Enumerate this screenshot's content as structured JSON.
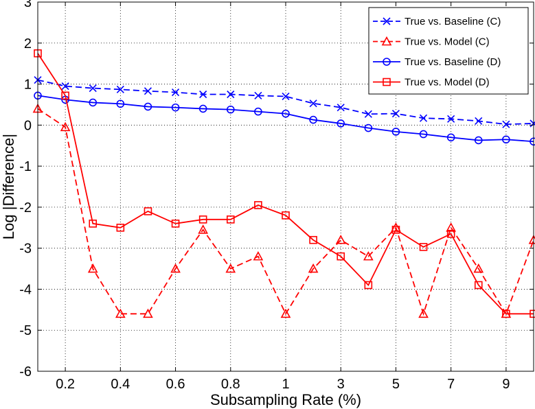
{
  "chart_data": {
    "type": "line",
    "title": "",
    "xlabel": "Subsampling Rate (%)",
    "ylabel": "Log |Difference|",
    "ylim": [
      -6,
      3
    ],
    "y_ticks": [
      -6,
      -5,
      -4,
      -3,
      -2,
      -1,
      0,
      1,
      2,
      3
    ],
    "x_categories": [
      "0.1",
      "0.2",
      "0.3",
      "0.4",
      "0.5",
      "0.6",
      "0.7",
      "0.8",
      "0.9",
      "1",
      "2",
      "3",
      "4",
      "5",
      "6",
      "7",
      "8",
      "9",
      "10"
    ],
    "x_tick_labels": [
      "0.2",
      "0.4",
      "0.6",
      "0.8",
      "1",
      "3",
      "5",
      "7",
      "9"
    ],
    "grid": true,
    "legend_position": "top-right",
    "series": [
      {
        "name": "True vs. Baseline (C)",
        "color": "#0000ff",
        "line_style": "dashed",
        "marker": "x",
        "values": [
          1.1,
          0.95,
          0.9,
          0.87,
          0.83,
          0.8,
          0.75,
          0.75,
          0.72,
          0.7,
          0.53,
          0.43,
          0.27,
          0.28,
          0.17,
          0.15,
          0.1,
          0.02,
          0.04
        ]
      },
      {
        "name": "True vs. Model (C)",
        "color": "#ff0000",
        "line_style": "dashed",
        "marker": "triangle",
        "values": [
          0.4,
          -0.05,
          -3.5,
          -4.6,
          -4.6,
          -3.5,
          -2.55,
          -3.5,
          -3.2,
          -4.6,
          -3.5,
          -2.8,
          -3.2,
          -2.5,
          -4.6,
          -2.5,
          -3.5,
          -4.6,
          -2.8
        ]
      },
      {
        "name": "True vs. Baseline (D)",
        "color": "#0000ff",
        "line_style": "solid",
        "marker": "circle",
        "values": [
          0.72,
          0.62,
          0.55,
          0.52,
          0.45,
          0.43,
          0.4,
          0.38,
          0.33,
          0.28,
          0.13,
          0.04,
          -0.07,
          -0.16,
          -0.22,
          -0.3,
          -0.37,
          -0.35,
          -0.4
        ]
      },
      {
        "name": "True vs. Model (D)",
        "color": "#ff0000",
        "line_style": "solid",
        "marker": "square",
        "values": [
          1.75,
          0.72,
          -2.4,
          -2.5,
          -2.1,
          -2.4,
          -2.3,
          -2.3,
          -1.95,
          -2.2,
          -2.8,
          -3.2,
          -3.9,
          -2.55,
          -2.97,
          -2.65,
          -3.9,
          -4.6,
          -4.6
        ]
      }
    ]
  }
}
